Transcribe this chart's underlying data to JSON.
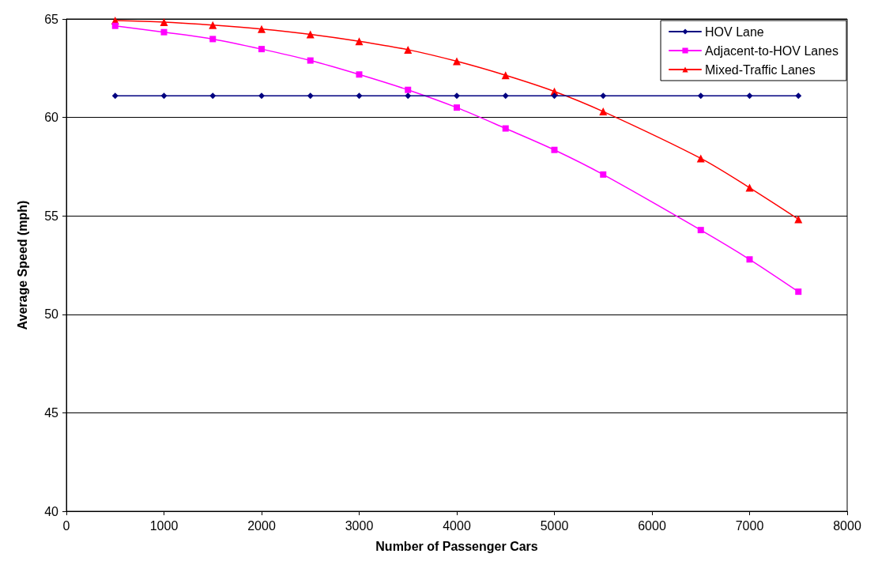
{
  "chart_data": {
    "type": "line",
    "xlabel": "Number of Passenger Cars",
    "ylabel": "Average Speed (mph)",
    "x": [
      500,
      1000,
      1500,
      2000,
      2500,
      3000,
      3500,
      4000,
      4500,
      5000,
      5500,
      6500,
      7000,
      7500
    ],
    "series": [
      {
        "name": "HOV Lane",
        "color": "#000080",
        "marker": "diamond",
        "values": [
          61.1,
          61.1,
          61.1,
          61.1,
          61.1,
          61.1,
          61.1,
          61.1,
          61.1,
          61.1,
          61.1,
          61.1,
          61.1,
          61.1
        ]
      },
      {
        "name": "Adjacent-to-HOV Lanes",
        "color": "#ff00ff",
        "marker": "square",
        "values": [
          64.65,
          64.33,
          63.98,
          63.47,
          62.89,
          62.18,
          61.4,
          60.5,
          59.44,
          58.35,
          57.1,
          54.28,
          52.79,
          51.15
        ]
      },
      {
        "name": "Mixed-Traffic Lanes",
        "color": "#ff0000",
        "marker": "triangle",
        "values": [
          64.92,
          64.84,
          64.69,
          64.49,
          64.22,
          63.87,
          63.44,
          62.85,
          62.14,
          61.32,
          60.3,
          57.92,
          56.43,
          54.83
        ]
      }
    ],
    "xlim": [
      0,
      8000
    ],
    "xticks": [
      0,
      1000,
      2000,
      3000,
      4000,
      5000,
      6000,
      7000,
      8000
    ],
    "ylim": [
      40,
      65
    ],
    "yticks": [
      40,
      45,
      50,
      55,
      60,
      65
    ],
    "grid": "y",
    "legend": "top right",
    "line_style": "solid"
  }
}
